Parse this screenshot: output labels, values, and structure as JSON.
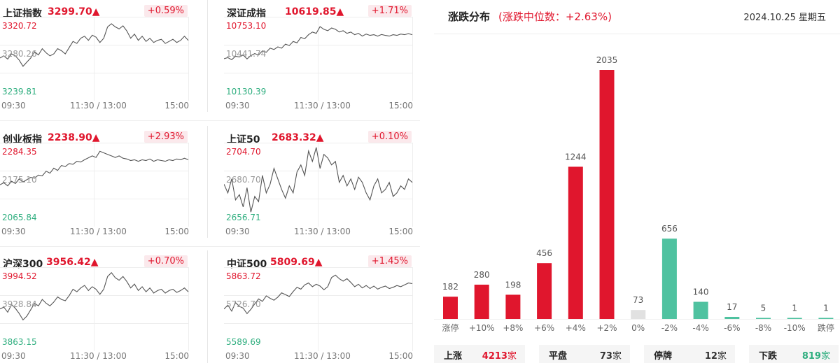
{
  "indices": [
    {
      "name": "上证指数",
      "value": "3299.70",
      "arrow": "▲",
      "change": "+0.59%",
      "ymax": "3320.72",
      "ymid": "3280.26",
      "ymin": "3239.81",
      "series": [
        3281,
        3283,
        3280,
        3285,
        3283,
        3279,
        3273,
        3277,
        3281,
        3287,
        3284,
        3290,
        3286,
        3283,
        3285,
        3290,
        3288,
        3285,
        3291,
        3297,
        3295,
        3300,
        3302,
        3298,
        3303,
        3301,
        3296,
        3300,
        3311,
        3314,
        3311,
        3309,
        3312,
        3307,
        3300,
        3304,
        3298,
        3302,
        3297,
        3300,
        3296,
        3298,
        3299,
        3295,
        3297,
        3299,
        3296,
        3298,
        3302,
        3298
      ]
    },
    {
      "name": "深证成指",
      "value": "10619.85",
      "arrow": "▲",
      "change": "+1.71%",
      "ymax": "10753.10",
      "ymid": "10441.74",
      "ymin": "10130.39",
      "series": [
        10442,
        10450,
        10435,
        10460,
        10455,
        10470,
        10440,
        10465,
        10480,
        10470,
        10500,
        10490,
        10520,
        10510,
        10530,
        10520,
        10550,
        10540,
        10570,
        10560,
        10600,
        10590,
        10620,
        10640,
        10630,
        10680,
        10660,
        10650,
        10670,
        10660,
        10640,
        10650,
        10630,
        10640,
        10620,
        10630,
        10610,
        10625,
        10615,
        10620,
        10610,
        10622,
        10615,
        10610,
        10620,
        10615,
        10625,
        10620,
        10628,
        10620
      ]
    },
    {
      "name": "创业板指",
      "value": "2238.90",
      "arrow": "▲",
      "change": "+2.93%",
      "ymax": "2284.35",
      "ymid": "2175.10",
      "ymin": "2065.84",
      "series": [
        2175,
        2180,
        2172,
        2184,
        2178,
        2190,
        2182,
        2188,
        2194,
        2192,
        2200,
        2198,
        2210,
        2205,
        2218,
        2212,
        2225,
        2222,
        2230,
        2228,
        2236,
        2234,
        2240,
        2245,
        2250,
        2246,
        2262,
        2258,
        2254,
        2250,
        2246,
        2250,
        2244,
        2242,
        2238,
        2240,
        2236,
        2240,
        2238,
        2242,
        2236,
        2240,
        2238,
        2236,
        2240,
        2238,
        2242,
        2240,
        2244,
        2240
      ]
    },
    {
      "name": "上证50",
      "value": "2683.32",
      "arrow": "▲",
      "change": "+0.10%",
      "ymax": "2704.70",
      "ymid": "2680.70",
      "ymin": "2656.71",
      "series": [
        2681,
        2676,
        2684,
        2672,
        2675,
        2668,
        2679,
        2665,
        2674,
        2671,
        2686,
        2676,
        2681,
        2690,
        2684,
        2678,
        2673,
        2680,
        2676,
        2688,
        2692,
        2686,
        2700,
        2694,
        2702,
        2690,
        2698,
        2696,
        2692,
        2694,
        2682,
        2686,
        2680,
        2684,
        2678,
        2685,
        2682,
        2676,
        2672,
        2680,
        2684,
        2676,
        2678,
        2682,
        2674,
        2676,
        2680,
        2678,
        2684,
        2682
      ]
    },
    {
      "name": "沪深300",
      "value": "3956.42",
      "arrow": "▲",
      "change": "+0.70%",
      "ymax": "3994.52",
      "ymid": "3928.84",
      "ymin": "3863.15",
      "series": [
        3929,
        3932,
        3924,
        3936,
        3930,
        3922,
        3912,
        3918,
        3928,
        3938,
        3934,
        3944,
        3938,
        3934,
        3940,
        3948,
        3944,
        3942,
        3950,
        3960,
        3956,
        3962,
        3966,
        3958,
        3964,
        3960,
        3952,
        3960,
        3980,
        3986,
        3978,
        3974,
        3980,
        3972,
        3962,
        3968,
        3958,
        3964,
        3956,
        3962,
        3954,
        3958,
        3960,
        3954,
        3958,
        3960,
        3955,
        3958,
        3962,
        3956
      ]
    },
    {
      "name": "中证500",
      "value": "5809.69",
      "arrow": "▲",
      "change": "+1.45%",
      "ymax": "5863.72",
      "ymid": "5726.70",
      "ymin": "5589.69",
      "series": [
        5727,
        5740,
        5720,
        5748,
        5736,
        5730,
        5712,
        5726,
        5744,
        5760,
        5752,
        5770,
        5762,
        5756,
        5766,
        5780,
        5774,
        5768,
        5784,
        5798,
        5792,
        5806,
        5812,
        5800,
        5808,
        5802,
        5790,
        5800,
        5830,
        5838,
        5826,
        5818,
        5826,
        5814,
        5800,
        5808,
        5796,
        5804,
        5794,
        5802,
        5792,
        5798,
        5802,
        5794,
        5798,
        5804,
        5800,
        5806,
        5812,
        5810
      ]
    }
  ],
  "time_labels": [
    "09:30",
    "11:30 / 13:00",
    "15:00"
  ],
  "distribution": {
    "title": "涨跌分布",
    "subtitle": "(涨跌中位数：+2.63%)",
    "date": "2024.10.25 星期五",
    "chart_data": {
      "type": "bar",
      "categories": [
        "涨停",
        "+10%",
        "+8%",
        "+6%",
        "+4%",
        "+2%",
        "0%",
        "-2%",
        "-4%",
        "-6%",
        "-8%",
        "-10%",
        "跌停"
      ],
      "values": [
        182,
        280,
        198,
        456,
        1244,
        2035,
        73,
        656,
        140,
        17,
        5,
        1,
        1
      ],
      "colors": [
        "#e0162d",
        "#e0162d",
        "#e0162d",
        "#e0162d",
        "#e0162d",
        "#e0162d",
        "#e1e1e1",
        "#4fc2a0",
        "#4fc2a0",
        "#4fc2a0",
        "#4fc2a0",
        "#4fc2a0",
        "#4fc2a0"
      ]
    }
  },
  "summary": [
    {
      "label": "上涨",
      "value": "4213",
      "unit": "家",
      "color": "#e0162d"
    },
    {
      "label": "平盘",
      "value": "73",
      "unit": "家",
      "color": "#333333"
    },
    {
      "label": "停牌",
      "value": "12",
      "unit": "家",
      "color": "#333333"
    },
    {
      "label": "下跌",
      "value": "819",
      "unit": "家",
      "color": "#2fae7f"
    }
  ]
}
